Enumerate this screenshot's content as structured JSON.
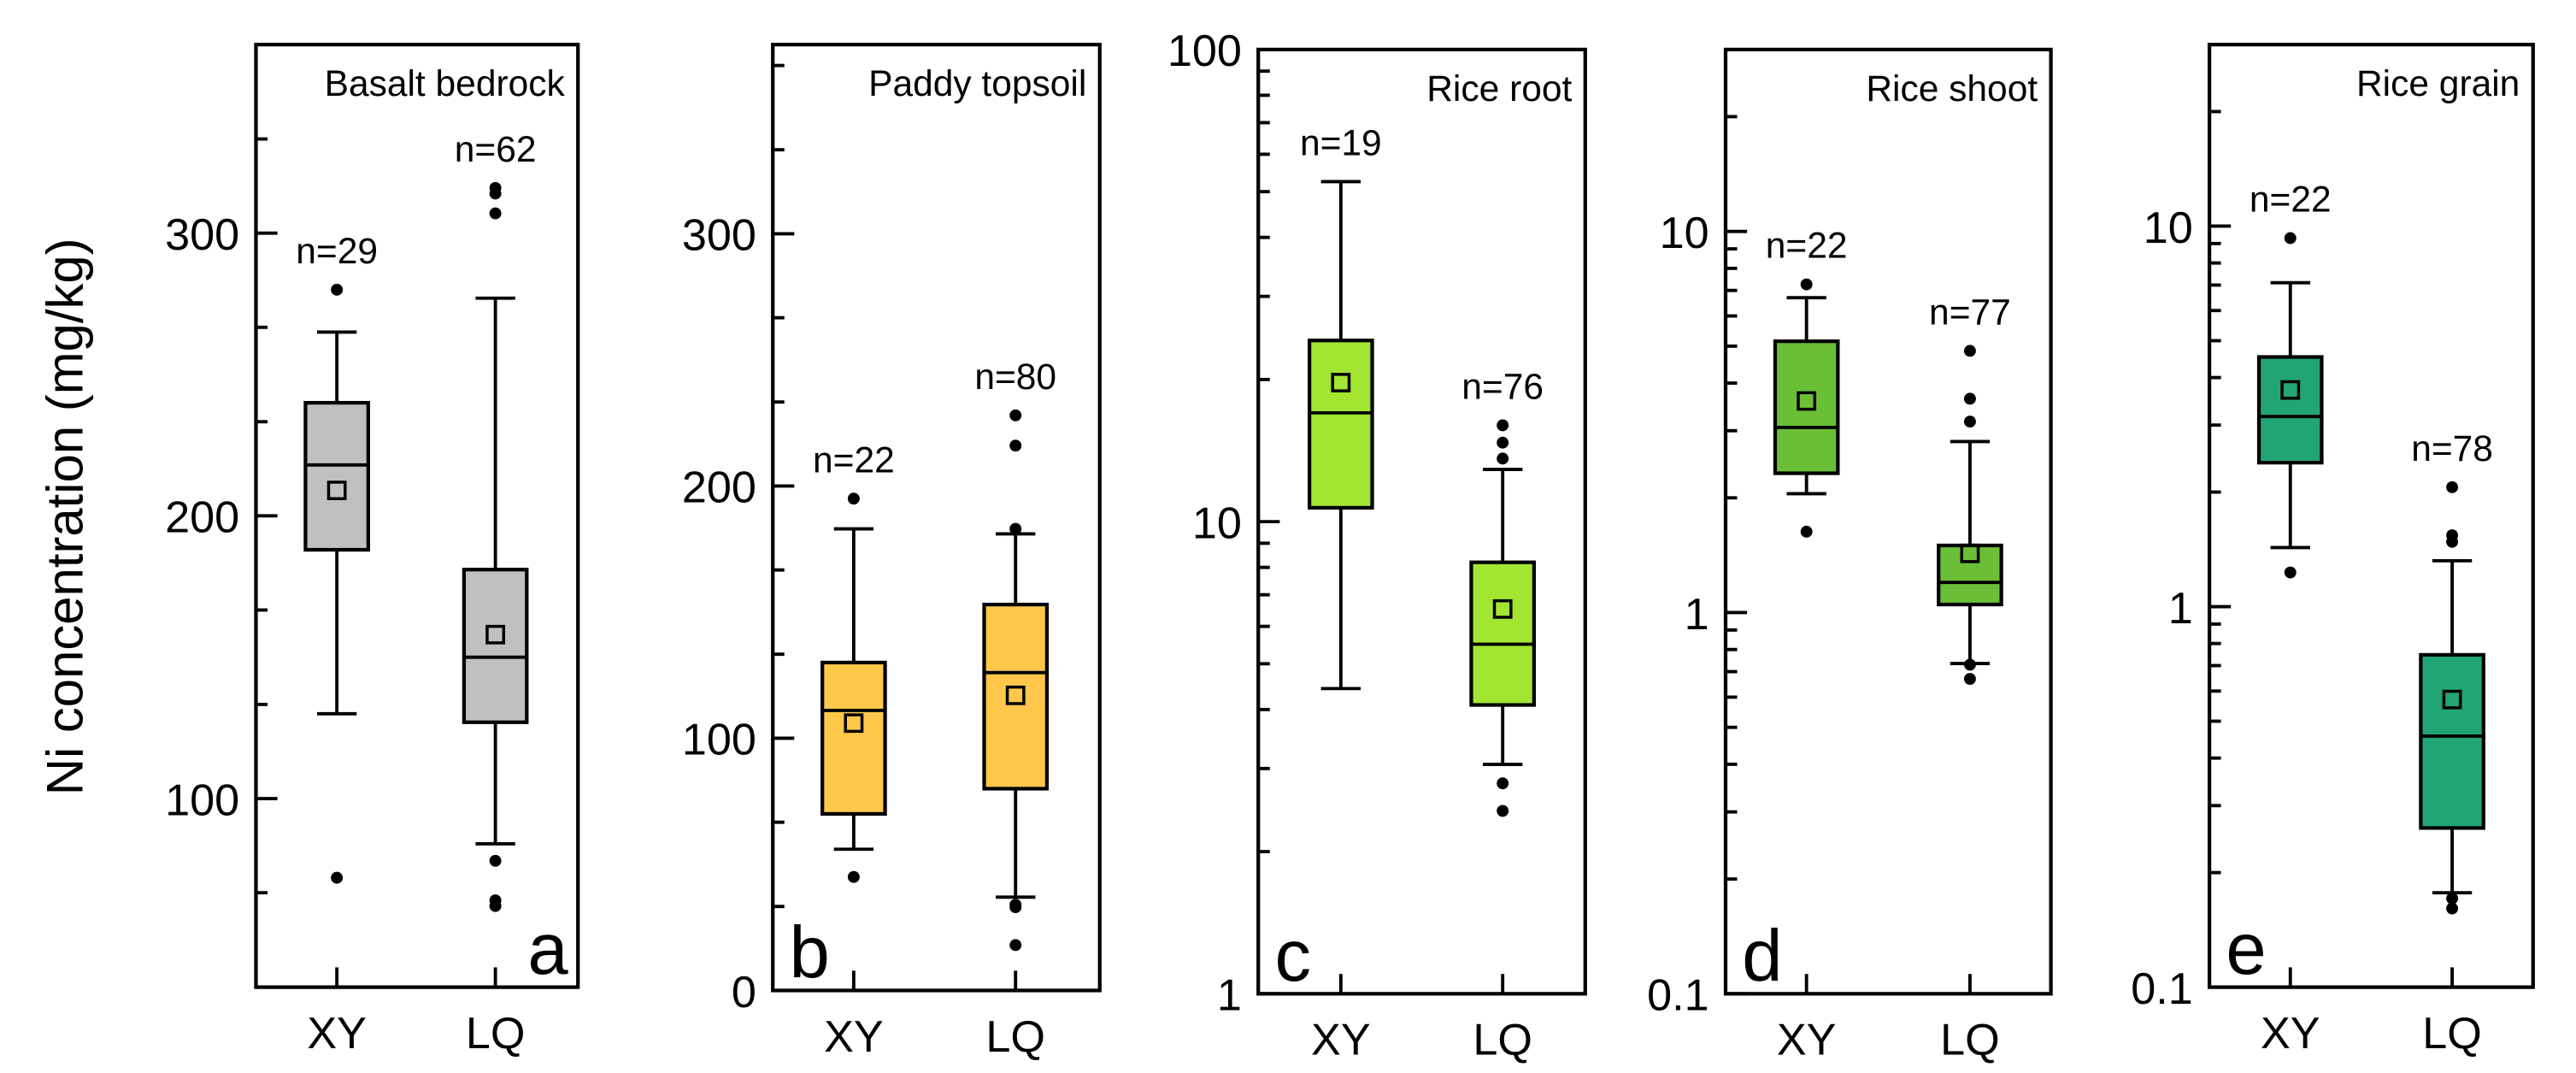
{
  "chart_data": {
    "type": "box",
    "ylabel": "Ni concentration (mg/kg)",
    "categories": [
      "XY",
      "LQ"
    ],
    "panels": [
      {
        "letter": "a",
        "title": "Basalt bedrock",
        "scale": "linear",
        "ylim": [
          33.3,
          366.7
        ],
        "major_ticks": [
          100,
          200,
          300
        ],
        "tick_labels": [
          "100",
          "200",
          "300"
        ],
        "minor_ticks": [
          66.7,
          133.3,
          166.7,
          233.3,
          266.7,
          333.3
        ],
        "color": "#c0c0c0",
        "groups": [
          {
            "category": "XY",
            "n_label": "n=29",
            "q1": 188,
            "median": 218,
            "q3": 240,
            "mean": 209,
            "whisker_low": 130,
            "whisker_high": 265,
            "outliers": [
              280,
              72
            ]
          },
          {
            "category": "LQ",
            "n_label": "n=62",
            "q1": 127,
            "median": 150,
            "q3": 181,
            "mean": 158,
            "whisker_low": 84,
            "whisker_high": 277,
            "outliers": [
              316,
              314,
              307,
              78,
              64,
              62
            ]
          }
        ]
      },
      {
        "letter": "b",
        "title": "Paddy topsoil",
        "scale": "linear",
        "ylim": [
          0,
          375
        ],
        "major_ticks": [
          0,
          100,
          200,
          300
        ],
        "tick_labels": [
          "0",
          "100",
          "200",
          "300"
        ],
        "minor_ticks": [
          33.3,
          66.7,
          133.3,
          166.7,
          233.3,
          266.7,
          333.3,
          366.7
        ],
        "color": "#ffc84b",
        "groups": [
          {
            "category": "XY",
            "n_label": "n=22",
            "q1": 70,
            "median": 111,
            "q3": 130,
            "mean": 106,
            "whisker_low": 56,
            "whisker_high": 183,
            "outliers": [
              195,
              45
            ]
          },
          {
            "category": "LQ",
            "n_label": "n=80",
            "q1": 80,
            "median": 126,
            "q3": 153,
            "mean": 117,
            "whisker_low": 37,
            "whisker_high": 181,
            "outliers": [
              228,
              216,
              183,
              34,
              33,
              18
            ]
          }
        ]
      },
      {
        "letter": "c",
        "title": "Rice root",
        "scale": "log",
        "ylim": [
          1,
          100
        ],
        "major_ticks": [
          1,
          10,
          100
        ],
        "tick_labels": [
          "1",
          "10",
          "100"
        ],
        "minor_ticks": [
          2,
          3,
          4,
          5,
          6,
          7,
          8,
          9,
          20,
          30,
          40,
          50,
          60,
          70,
          80,
          90
        ],
        "color": "#a2e632",
        "groups": [
          {
            "category": "XY",
            "n_label": "n=19",
            "q1": 10.7,
            "median": 17.0,
            "q3": 24.2,
            "mean": 19.7,
            "whisker_low": 4.43,
            "whisker_high": 52.5,
            "outliers": []
          },
          {
            "category": "LQ",
            "n_label": "n=76",
            "q1": 4.09,
            "median": 5.5,
            "q3": 8.2,
            "mean": 6.53,
            "whisker_low": 3.06,
            "whisker_high": 12.9,
            "outliers": [
              16.0,
              14.7,
              13.6,
              2.79,
              2.44
            ]
          }
        ]
      },
      {
        "letter": "d",
        "title": "Rice shoot",
        "scale": "log",
        "ylim": [
          0.1,
          30
        ],
        "major_ticks": [
          0.1,
          1,
          10
        ],
        "tick_labels": [
          "0.1",
          "1",
          "10"
        ],
        "minor_ticks": [
          0.2,
          0.3,
          0.4,
          0.5,
          0.6,
          0.7,
          0.8,
          0.9,
          2,
          3,
          4,
          5,
          6,
          7,
          8,
          9,
          20
        ],
        "color": "#6bbf37",
        "groups": [
          {
            "category": "XY",
            "n_label": "n=22",
            "q1": 2.32,
            "median": 3.06,
            "q3": 5.15,
            "mean": 3.59,
            "whisker_low": 2.05,
            "whisker_high": 6.7,
            "outliers": [
              7.26,
              1.63
            ]
          },
          {
            "category": "LQ",
            "n_label": "n=77",
            "q1": 1.05,
            "median": 1.2,
            "q3": 1.5,
            "mean": 1.43,
            "whisker_low": 0.735,
            "whisker_high": 2.81,
            "outliers": [
              4.86,
              3.64,
              3.17,
              0.73,
              0.67
            ]
          }
        ]
      },
      {
        "letter": "e",
        "title": "Rice grain",
        "scale": "log",
        "ylim": [
          0.1,
          30
        ],
        "major_ticks": [
          0.1,
          1,
          10
        ],
        "tick_labels": [
          "0.1",
          "1",
          "10"
        ],
        "minor_ticks": [
          0.2,
          0.3,
          0.4,
          0.5,
          0.6,
          0.7,
          0.8,
          0.9,
          2,
          3,
          4,
          5,
          6,
          7,
          8,
          9,
          20
        ],
        "color": "#22a574",
        "groups": [
          {
            "category": "XY",
            "n_label": "n=22",
            "q1": 2.39,
            "median": 3.16,
            "q3": 4.53,
            "mean": 3.71,
            "whisker_low": 1.43,
            "whisker_high": 7.1,
            "outliers": [
              9.3,
              1.23
            ]
          },
          {
            "category": "LQ",
            "n_label": "n=78",
            "q1": 0.262,
            "median": 0.457,
            "q3": 0.747,
            "mean": 0.57,
            "whisker_low": 0.177,
            "whisker_high": 1.32,
            "outliers": [
              2.06,
              1.54,
              1.48,
              0.171,
              0.161
            ]
          }
        ]
      }
    ]
  }
}
